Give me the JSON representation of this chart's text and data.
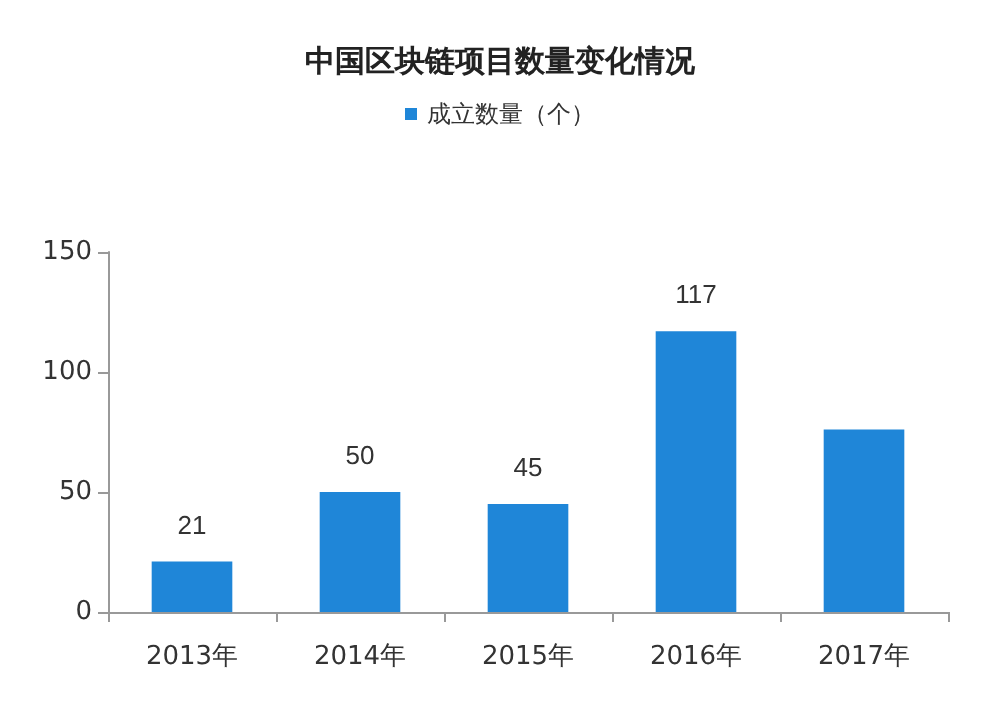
{
  "chart_data": {
    "type": "bar",
    "title": "中国区块链项目数量变化情况",
    "categories": [
      "2013年",
      "2014年",
      "2015年",
      "2016年",
      "2017年"
    ],
    "series": [
      {
        "name": "成立数量（个）",
        "color": "#1f86d8",
        "values": [
          21,
          50,
          45,
          117,
          76
        ],
        "value_labels": [
          "21",
          "50",
          "45",
          "117",
          null
        ]
      }
    ],
    "ylim": [
      0,
      150
    ],
    "yticks": [
      0,
      50,
      100,
      150
    ],
    "grid": false,
    "legend": "top"
  }
}
